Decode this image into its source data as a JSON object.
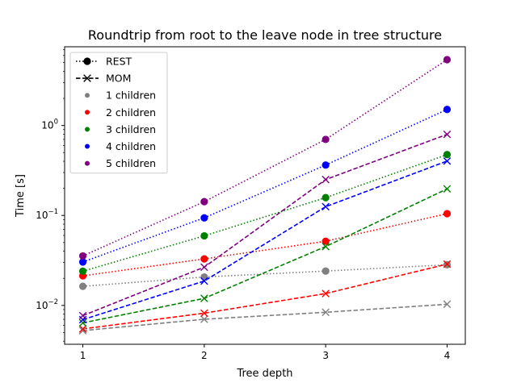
{
  "chart_data": {
    "type": "line",
    "title": "Roundtrip from root to the leave node in tree structure",
    "xlabel": "Tree depth",
    "ylabel": "Time [s]",
    "x": [
      1,
      2,
      3,
      4
    ],
    "xticks": [
      "1",
      "2",
      "3",
      "4"
    ],
    "xlim": [
      0.85,
      4.15
    ],
    "yscale": "log",
    "ylim": [
      0.0037,
      7.5
    ],
    "yticks": [
      {
        "value": 0.01,
        "base": "10",
        "exp": "−2"
      },
      {
        "value": 0.1,
        "base": "10",
        "exp": "−1"
      },
      {
        "value": 1,
        "base": "10",
        "exp": "0"
      }
    ],
    "grid": false,
    "legend_position": "upper-left",
    "legend": [
      {
        "label": "REST",
        "kind": "style",
        "marker": "circle",
        "linestyle": "dotted",
        "color": "#000000"
      },
      {
        "label": "MOM",
        "kind": "style",
        "marker": "x",
        "linestyle": "dashed",
        "color": "#000000"
      },
      {
        "label": "1 children",
        "kind": "color",
        "color": "#808080"
      },
      {
        "label": "2 children",
        "kind": "color",
        "color": "#ff0000"
      },
      {
        "label": "3 children",
        "kind": "color",
        "color": "#008000"
      },
      {
        "label": "4 children",
        "kind": "color",
        "color": "#0000ff"
      },
      {
        "label": "5 children",
        "kind": "color",
        "color": "#800080"
      }
    ],
    "series": [
      {
        "protocol": "REST",
        "children": 1,
        "color": "#808080",
        "values": [
          0.0163,
          0.0207,
          0.0241,
          0.0283
        ]
      },
      {
        "protocol": "REST",
        "children": 2,
        "color": "#ff0000",
        "values": [
          0.0213,
          0.0329,
          0.0517,
          0.1047
        ]
      },
      {
        "protocol": "REST",
        "children": 3,
        "color": "#008000",
        "values": [
          0.024,
          0.0593,
          0.1577,
          0.4747
        ]
      },
      {
        "protocol": "REST",
        "children": 4,
        "color": "#0000ff",
        "values": [
          0.0304,
          0.094,
          0.3634,
          1.5066
        ]
      },
      {
        "protocol": "REST",
        "children": 5,
        "color": "#800080",
        "values": [
          0.0355,
          0.1423,
          0.7,
          5.39
        ]
      },
      {
        "protocol": "MOM",
        "children": 1,
        "color": "#808080",
        "values": [
          0.00525,
          0.00702,
          0.00839,
          0.01031
        ]
      },
      {
        "protocol": "MOM",
        "children": 2,
        "color": "#ff0000",
        "values": [
          0.00548,
          0.0082,
          0.01355,
          0.0288
        ]
      },
      {
        "protocol": "MOM",
        "children": 3,
        "color": "#008000",
        "values": [
          0.0064,
          0.01198,
          0.04513,
          0.19754
        ]
      },
      {
        "protocol": "MOM",
        "children": 4,
        "color": "#0000ff",
        "values": [
          0.00695,
          0.01867,
          0.12517,
          0.40246
        ]
      },
      {
        "protocol": "MOM",
        "children": 5,
        "color": "#800080",
        "values": [
          0.0077,
          0.02664,
          0.2506,
          0.79727
        ]
      }
    ]
  }
}
